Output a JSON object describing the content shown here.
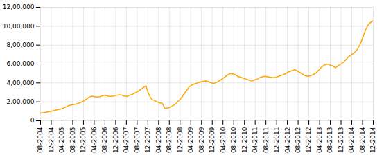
{
  "chart_data": {
    "type": "line",
    "color": "#FFA500",
    "values": [
      80000,
      85000,
      90000,
      95000,
      100000,
      108000,
      115000,
      120000,
      130000,
      140000,
      155000,
      165000,
      170000,
      175000,
      185000,
      195000,
      210000,
      230000,
      250000,
      260000,
      255000,
      250000,
      255000,
      265000,
      270000,
      260000,
      258000,
      262000,
      268000,
      275000,
      270000,
      262000,
      258000,
      270000,
      280000,
      295000,
      310000,
      330000,
      350000,
      370000,
      280000,
      230000,
      215000,
      200000,
      190000,
      185000,
      130000,
      135000,
      145000,
      160000,
      180000,
      210000,
      240000,
      280000,
      320000,
      360000,
      380000,
      390000,
      400000,
      410000,
      415000,
      420000,
      415000,
      400000,
      395000,
      405000,
      420000,
      440000,
      460000,
      480000,
      500000,
      495000,
      488000,
      468000,
      460000,
      450000,
      440000,
      430000,
      420000,
      430000,
      440000,
      455000,
      465000,
      470000,
      465000,
      460000,
      455000,
      460000,
      470000,
      480000,
      490000,
      505000,
      520000,
      530000,
      540000,
      525000,
      510000,
      490000,
      475000,
      470000,
      478000,
      490000,
      510000,
      540000,
      570000,
      590000,
      600000,
      590000,
      580000,
      560000,
      580000,
      600000,
      620000,
      650000,
      680000,
      700000,
      720000,
      750000,
      800000,
      870000,
      950000,
      1010000,
      1040000,
      1060000
    ],
    "xlim": [
      0,
      31
    ],
    "xticks": [
      {
        "value": 0,
        "label": "08-2004"
      },
      {
        "value": 1,
        "label": "12-2004"
      },
      {
        "value": 2,
        "label": "04-2005"
      },
      {
        "value": 3,
        "label": "08-2005"
      },
      {
        "value": 4,
        "label": "12-2005"
      },
      {
        "value": 5,
        "label": "04-2006"
      },
      {
        "value": 6,
        "label": "08-2006"
      },
      {
        "value": 7,
        "label": "12-2006"
      },
      {
        "value": 8,
        "label": "04-2007"
      },
      {
        "value": 9,
        "label": "08-2007"
      },
      {
        "value": 10,
        "label": "12-2007"
      },
      {
        "value": 11,
        "label": "04-2008"
      },
      {
        "value": 12,
        "label": "08-2008"
      },
      {
        "value": 13,
        "label": "12-2008"
      },
      {
        "value": 14,
        "label": "04-2009"
      },
      {
        "value": 15,
        "label": "08-2009"
      },
      {
        "value": 16,
        "label": "12-2009"
      },
      {
        "value": 17,
        "label": "04-2010"
      },
      {
        "value": 18,
        "label": "08-2010"
      },
      {
        "value": 19,
        "label": "12-2010"
      },
      {
        "value": 20,
        "label": "04-2011"
      },
      {
        "value": 21,
        "label": "08-2011"
      },
      {
        "value": 22,
        "label": "12-2011"
      },
      {
        "value": 23,
        "label": "04-2012"
      },
      {
        "value": 24,
        "label": "08-2012"
      },
      {
        "value": 25,
        "label": "12-2012"
      },
      {
        "value": 26,
        "label": "04-2013"
      },
      {
        "value": 27,
        "label": "08-2013"
      },
      {
        "value": 28,
        "label": "12-2013"
      },
      {
        "value": 29,
        "label": "04-2014"
      },
      {
        "value": 30,
        "label": "08-2014"
      },
      {
        "value": 31,
        "label": "12-2014"
      }
    ],
    "ylim": [
      0,
      1200000
    ],
    "yticks": [
      0,
      {
        "value": 200000,
        "label": "2,00,000"
      },
      {
        "value": 400000,
        "label": "4,00,000"
      },
      {
        "value": 600000,
        "label": "6,00,000"
      },
      {
        "value": 800000,
        "label": "8,00,000"
      },
      {
        "value": 1000000,
        "label": "10,00,000"
      },
      {
        "value": 1200000,
        "label": "12,00,000"
      }
    ],
    "grid": true
  }
}
